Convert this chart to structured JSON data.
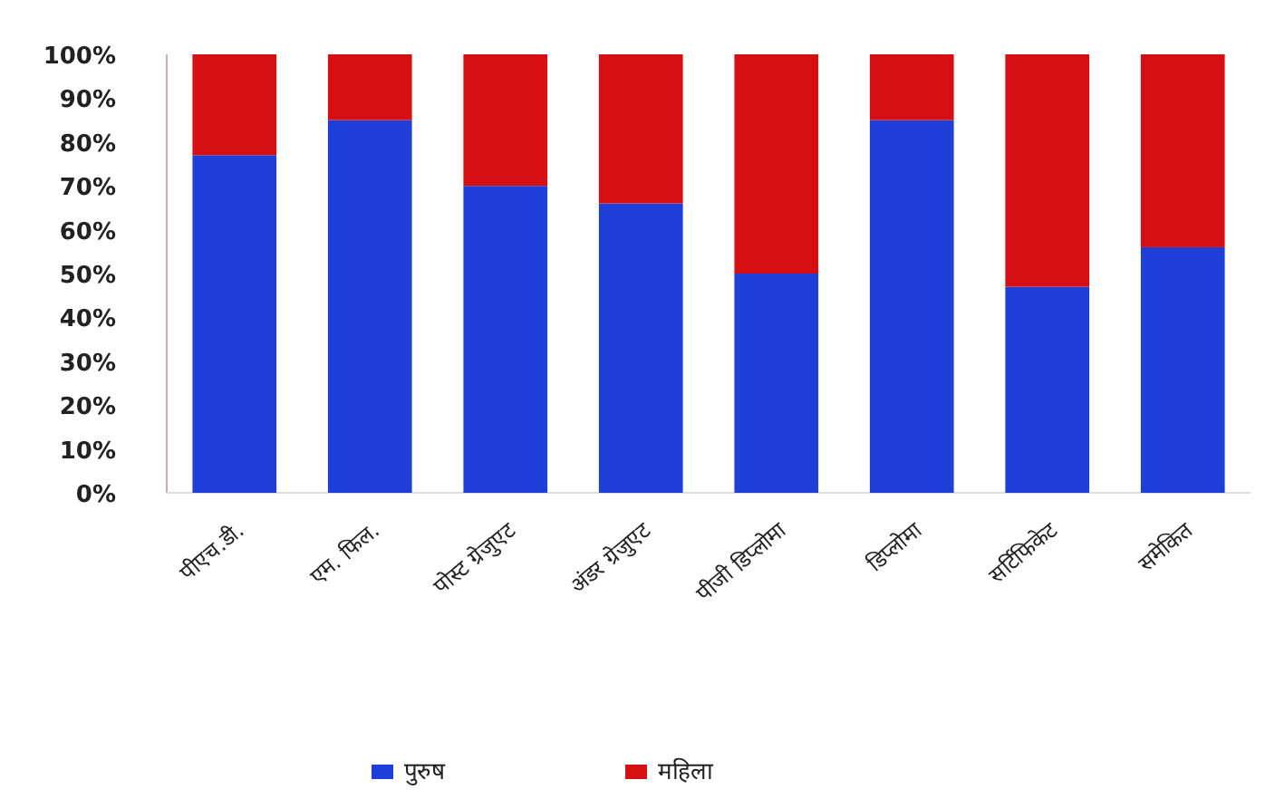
{
  "chart_data": {
    "type": "bar",
    "stacked": true,
    "categories": [
      "पीएच.डी.",
      "एम. फिल.",
      "पोस्ट ग्रेजुएट",
      "अंडर ग्रेजुएट",
      "पीजी डिप्लोमा",
      "डिप्लोमा",
      "सर्टिफिकेट",
      "समेकित"
    ],
    "series": [
      {
        "name": "पुरुष",
        "color": "#1e3fd8",
        "values": [
          77,
          85,
          70,
          66,
          50,
          85,
          47,
          56
        ]
      },
      {
        "name": "महिला",
        "color": "#d60f12",
        "values": [
          23,
          15,
          30,
          34,
          50,
          15,
          53,
          44
        ]
      }
    ],
    "ylim": [
      0,
      100
    ],
    "yticks": [
      {
        "value": 0,
        "label": "0%"
      },
      {
        "value": 10,
        "label": "10%"
      },
      {
        "value": 20,
        "label": "20%"
      },
      {
        "value": 30,
        "label": "30%"
      },
      {
        "value": 40,
        "label": "40%"
      },
      {
        "value": 50,
        "label": "50%"
      },
      {
        "value": 60,
        "label": "60%"
      },
      {
        "value": 70,
        "label": "70%"
      },
      {
        "value": 80,
        "label": "80%"
      },
      {
        "value": 90,
        "label": "90%"
      },
      {
        "value": 100,
        "label": "100%"
      }
    ],
    "grid": false,
    "legend": "bottom"
  }
}
